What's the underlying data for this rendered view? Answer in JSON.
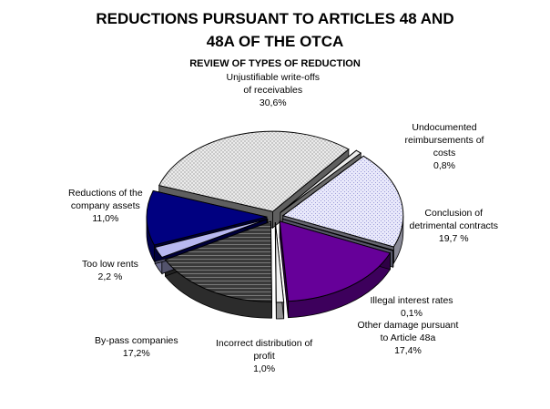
{
  "chart_data": {
    "type": "pie",
    "title": "REDUCTIONS PURSUANT TO ARTICLES 48 AND 48A OF THE OTCA",
    "title_line1": "REDUCTIONS PURSUANT TO ARTICLES 48 AND",
    "title_line2": "48A OF THE OTCA",
    "subtitle": "REVIEW OF TYPES OF REDUCTION",
    "style": "3d-exploded",
    "slices": [
      {
        "label": "Unjustifiable write-offs of receivables",
        "label_lines": [
          "Unjustifiable write-offs",
          "of receivables"
        ],
        "value_text": "30,6%",
        "value": 30.6,
        "color": "#d4d4d4",
        "pattern": "dots"
      },
      {
        "label": "Undocumented reimbursements of costs",
        "label_lines": [
          "Undocumented",
          "reimbursements of",
          "costs"
        ],
        "value_text": "0,8%",
        "value": 0.8,
        "color": "#ececec",
        "pattern": "none"
      },
      {
        "label": "Conclusion of detrimental contracts",
        "label_lines": [
          "Conclusion of",
          "detrimental contracts"
        ],
        "value_text": "19,7 %",
        "value": 19.7,
        "color": "#e2e2f8",
        "pattern": "dots"
      },
      {
        "label": "Illegal interest rates",
        "label_lines": [
          "Illegal interest rates"
        ],
        "value_text": "0,1%",
        "value": 0.1,
        "color": "#c0c0e8",
        "pattern": "none"
      },
      {
        "label": "Other damage pursuant to Article 48a",
        "label_lines": [
          "Other damage pursuant",
          "to Article 48a"
        ],
        "value_text": "17,4%",
        "value": 17.4,
        "color": "#660099",
        "pattern": "none"
      },
      {
        "label": "Incorrect distribution of profit",
        "label_lines": [
          "Incorrect distribution of",
          "profit"
        ],
        "value_text": "1,0%",
        "value": 1.0,
        "color": "#f2f2f2",
        "pattern": "none"
      },
      {
        "label": "By-pass companies",
        "label_lines": [
          "By-pass companies"
        ],
        "value_text": "17,2%",
        "value": 17.2,
        "color": "#4a4a4a",
        "pattern": "lines"
      },
      {
        "label": "Too low rents",
        "label_lines": [
          "Too low rents"
        ],
        "value_text": "2,2 %",
        "value": 2.2,
        "color": "#b8b8f0",
        "pattern": "none"
      },
      {
        "label": "Reductions of the company assets",
        "label_lines": [
          "Reductions of the",
          "company assets"
        ],
        "value_text": "11,0%",
        "value": 11.0,
        "color": "#000080",
        "pattern": "none"
      }
    ]
  }
}
